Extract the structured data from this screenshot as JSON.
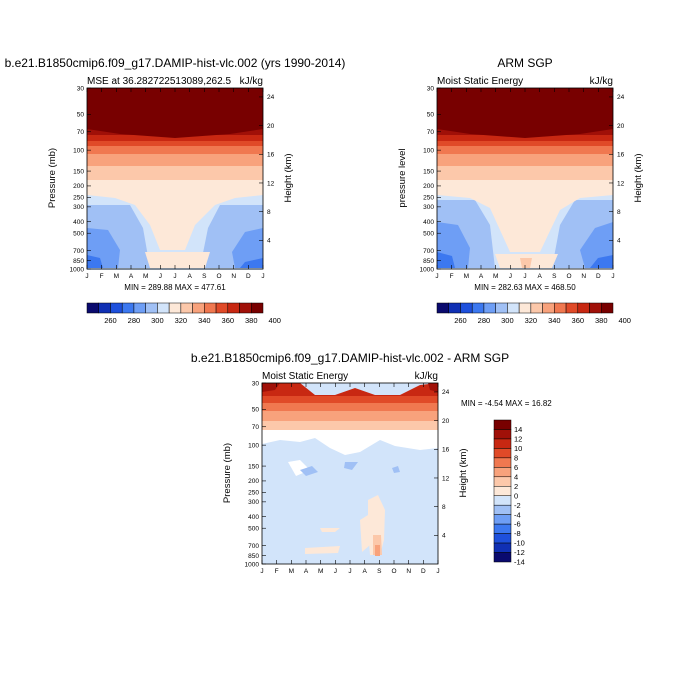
{
  "chart_data": [
    {
      "type": "heatmap",
      "title": "b.e21.B1850cmip6.f09_g17.DAMIP-hist-vlc.002 (yrs 1990-2014)",
      "subtitle_left": "MSE at 36.282722513089,262.5",
      "subtitle_right": "kJ/kg",
      "ylabel": "Pressure (mb)",
      "ylabel_right": "Height (km)",
      "minmax_text": "MIN = 289.88 MAX = 477.61",
      "x": [
        "J",
        "F",
        "M",
        "A",
        "M",
        "J",
        "J",
        "A",
        "S",
        "O",
        "N",
        "D",
        "J"
      ],
      "pressure_ticks": [
        "30",
        "50",
        "70",
        "100",
        "150",
        "200",
        "250",
        "300",
        "400",
        "500",
        "700",
        "850",
        "1000"
      ],
      "height_ticks": [
        "4",
        "8",
        "12",
        "16",
        "20",
        "24"
      ],
      "z_min": 289.88,
      "z_max": 477.61,
      "colorbar_labels": [
        "260",
        "280",
        "300",
        "320",
        "340",
        "360",
        "380",
        "400"
      ]
    },
    {
      "type": "heatmap",
      "title": "ARM SGP",
      "subtitle_left": "Moist Static Energy",
      "subtitle_right": "kJ/kg",
      "ylabel": "pressure level",
      "ylabel_right": "Height (km)",
      "minmax_text": "MIN = 282.63 MAX = 468.50",
      "x": [
        "J",
        "F",
        "M",
        "A",
        "M",
        "J",
        "J",
        "A",
        "S",
        "O",
        "N",
        "D",
        "J"
      ],
      "pressure_ticks": [
        "30",
        "50",
        "70",
        "100",
        "150",
        "200",
        "250",
        "300",
        "400",
        "500",
        "700",
        "850",
        "1000"
      ],
      "height_ticks": [
        "4",
        "8",
        "12",
        "16",
        "20",
        "24"
      ],
      "z_min": 282.63,
      "z_max": 468.5,
      "colorbar_labels": [
        "260",
        "280",
        "300",
        "320",
        "340",
        "360",
        "380",
        "400"
      ]
    },
    {
      "type": "heatmap",
      "title": "b.e21.B1850cmip6.f09_g17.DAMIP-hist-vlc.002 - ARM SGP",
      "subtitle_left": "Moist Static Energy",
      "subtitle_right": "kJ/kg",
      "ylabel": "Pressure (mb)",
      "ylabel_right": "Height (km)",
      "minmax_text": "MIN =  -4.54 MAX =  16.82",
      "x": [
        "J",
        "F",
        "M",
        "A",
        "M",
        "J",
        "J",
        "A",
        "S",
        "O",
        "N",
        "D",
        "J"
      ],
      "pressure_ticks": [
        "30",
        "50",
        "70",
        "100",
        "150",
        "200",
        "250",
        "300",
        "400",
        "500",
        "700",
        "850",
        "1000"
      ],
      "height_ticks": [
        "4",
        "8",
        "12",
        "16",
        "20",
        "24"
      ],
      "z_min": -4.54,
      "z_max": 16.82,
      "colorbar_labels": [
        "14",
        "12",
        "10",
        "8",
        "6",
        "4",
        "2",
        "0",
        "-2",
        "-4",
        "-6",
        "-8",
        "-10",
        "-12",
        "-14"
      ]
    }
  ],
  "colors": {
    "mse_levels": [
      "#0a0a6e",
      "#1030b4",
      "#1e50dc",
      "#3c78f0",
      "#6e9ef5",
      "#a0c0f5",
      "#d2e4fa",
      "#fde8d8",
      "#fcc8aa",
      "#f8a27c",
      "#f07850",
      "#e04a28",
      "#c82812",
      "#a01008",
      "#780000"
    ],
    "diff_levels": [
      "#780000",
      "#a01008",
      "#c82812",
      "#e04a28",
      "#f07850",
      "#f8a27c",
      "#fcc8aa",
      "#fde8d8",
      "#d2e4fa",
      "#a0c0f5",
      "#6e9ef5",
      "#3c78f0",
      "#1e50dc",
      "#1030b4",
      "#0a0a6e"
    ]
  }
}
